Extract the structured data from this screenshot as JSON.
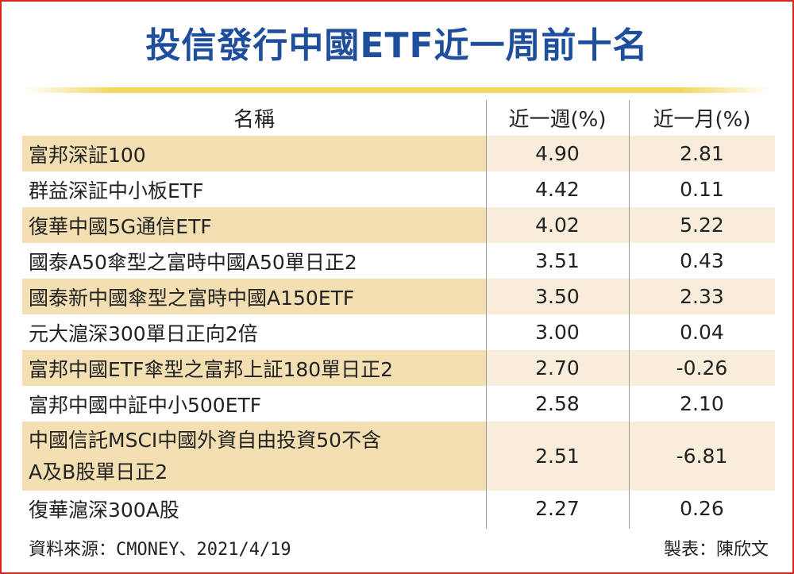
{
  "title": "投信發行中國ETF近一周前十名",
  "table": {
    "headers": {
      "name": "名稱",
      "week": "近一週(%)",
      "month": "近一月(%)"
    },
    "rows": [
      {
        "name": "富邦深証100",
        "week": "4.90",
        "month": "2.81"
      },
      {
        "name": "群益深証中小板ETF",
        "week": "4.42",
        "month": "0.11"
      },
      {
        "name": "復華中國5G通信ETF",
        "week": "4.02",
        "month": "5.22"
      },
      {
        "name": "國泰A50傘型之富時中國A50單日正2",
        "week": "3.51",
        "month": "0.43"
      },
      {
        "name": "國泰新中國傘型之富時中國A150ETF",
        "week": "3.50",
        "month": "2.33"
      },
      {
        "name": "元大滬深300單日正向2倍",
        "week": "3.00",
        "month": "0.04"
      },
      {
        "name": "富邦中國ETF傘型之富邦上証180單日正2",
        "week": "2.70",
        "month": "-0.26"
      },
      {
        "name": "富邦中國中証中小500ETF",
        "week": "2.58",
        "month": "2.10"
      },
      {
        "name": "中國信託MSCI中國外資自由投資50不含A及B股單日正2",
        "name_line1": "中國信託MSCI中國外資自由投資50不含",
        "name_line2": "A及B股單日正2",
        "week": "2.51",
        "month": "-6.81"
      },
      {
        "name": "復華滬深300A股",
        "week": "2.27",
        "month": "0.26"
      }
    ]
  },
  "footer": {
    "source": "資料來源：CMONEY、2021/4/19",
    "maker": "製表：陳欣文"
  },
  "colors": {
    "title": "#1f4e9c",
    "border": "#d9261c",
    "rule": "#f2d65c",
    "stripe_name": "#f3dfb2",
    "stripe_row": "#f7edda"
  }
}
